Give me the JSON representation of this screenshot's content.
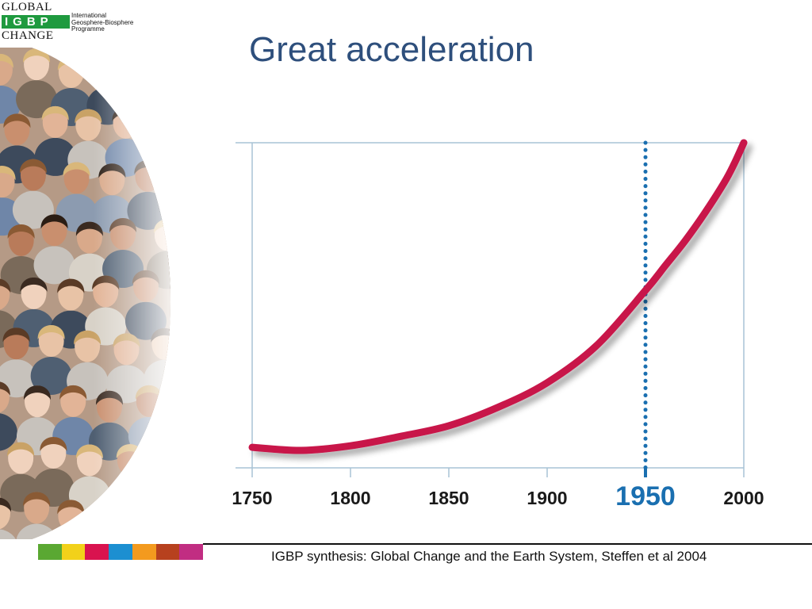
{
  "logo": {
    "line1": "GLOBAL",
    "badge": "IGBP",
    "line3": "CHANGE",
    "org_lines": [
      "International",
      "Geosphere-Biosphere",
      "Programme"
    ]
  },
  "slide": {
    "title": "Great acceleration",
    "citation": "IGBP synthesis: Global Change and the Earth System, Steffen et al 2004"
  },
  "colors": {
    "title": "#2e4f7c",
    "curve": "#c8134a",
    "marker": "#1a6fb0",
    "axis": "#a9c3d6",
    "colorbar": [
      "#5aa832",
      "#f2d11a",
      "#d9134f",
      "#1c8fd1",
      "#f39a1e",
      "#b7411e",
      "#c12d82"
    ]
  },
  "chart_data": {
    "type": "line",
    "title": "",
    "xlabel": "",
    "ylabel": "",
    "x_ticks": [
      1750,
      1800,
      1850,
      1900,
      1950,
      2000
    ],
    "highlight_tick": 1950,
    "xlim": [
      1750,
      2000
    ],
    "ylim": [
      0,
      1
    ],
    "grid": false,
    "series": [
      {
        "x": [
          1750,
          1775,
          1800,
          1825,
          1850,
          1875,
          1900,
          1925,
          1950,
          1960,
          1970,
          1980,
          1990,
          1995,
          2000
        ],
        "y": [
          0.01,
          0.0,
          0.015,
          0.045,
          0.08,
          0.14,
          0.22,
          0.34,
          0.52,
          0.6,
          0.68,
          0.77,
          0.87,
          0.93,
          1.0
        ]
      }
    ],
    "vertical_marker": {
      "x": 1950,
      "style": "dotted"
    }
  }
}
